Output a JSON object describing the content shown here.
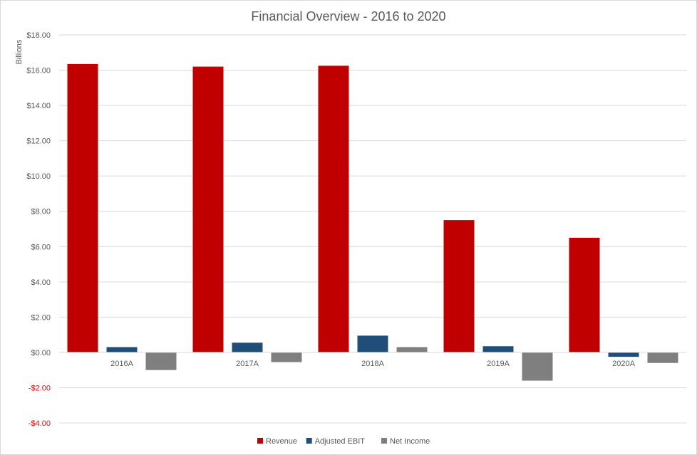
{
  "chart_data": {
    "type": "bar",
    "title": "Financial Overview - 2016 to 2020",
    "ylabel": "Billions",
    "xlabel": "",
    "categories": [
      "2016A",
      "2017A",
      "2018A",
      "2019A",
      "2020A"
    ],
    "series": [
      {
        "name": "Revenue",
        "color": "#c00000",
        "values": [
          16.35,
          16.2,
          16.25,
          7.5,
          6.5
        ]
      },
      {
        "name": "Adjusted EBIT",
        "color": "#1f4e79",
        "values": [
          0.3,
          0.55,
          0.95,
          0.35,
          -0.25
        ]
      },
      {
        "name": "Net Income",
        "color": "#7f7f7f",
        "values": [
          -1.0,
          -0.55,
          0.3,
          -1.6,
          -0.6
        ]
      }
    ],
    "ylim": [
      -4,
      18
    ],
    "yticks": [
      18,
      16,
      14,
      12,
      10,
      8,
      6,
      4,
      2,
      0,
      -2,
      -4
    ],
    "ytick_labels": [
      "$18.00",
      "$16.00",
      "$14.00",
      "$12.00",
      "$10.00",
      "$8.00",
      "$6.00",
      "$4.00",
      "$2.00",
      "$0.00",
      "-$2.00",
      "-$4.00"
    ],
    "negative_tick_color": "#ff0000",
    "grid": true,
    "legend": "bottom"
  }
}
